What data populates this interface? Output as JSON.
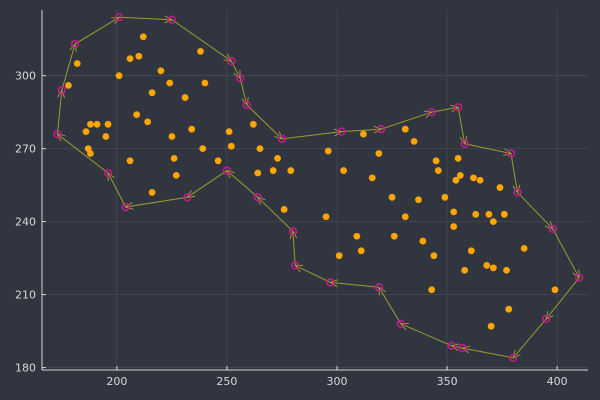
{
  "chart_data": {
    "type": "scatter",
    "title": "",
    "xlabel": "",
    "ylabel": "",
    "xlim": [
      166,
      414
    ],
    "ylim": [
      179,
      327
    ],
    "grid": true,
    "legend": "none",
    "x_ticks": [
      200,
      250,
      300,
      350,
      400
    ],
    "y_ticks": [
      180,
      210,
      240,
      270,
      300
    ],
    "colors": {
      "background": "#31353f",
      "points": "#ffa500",
      "hull": "#9d9d2c",
      "vertex": "#c41a8e"
    },
    "series": [
      {
        "marker": "filled-circle",
        "x": [
          178,
          182,
          186,
          187,
          188,
          188,
          191,
          195,
          196,
          201,
          206,
          206,
          209,
          210,
          212,
          214,
          216,
          216,
          220,
          224,
          225,
          226,
          227,
          231,
          234,
          238,
          239,
          240,
          246,
          251,
          252,
          262,
          264,
          265,
          271,
          273,
          276,
          279,
          295,
          296,
          301,
          303,
          309,
          311,
          312,
          316,
          319,
          325,
          326,
          331,
          331,
          335,
          337,
          339,
          343,
          344,
          345,
          346,
          349,
          353,
          353,
          354,
          355,
          356,
          358,
          361,
          362,
          363,
          365,
          368,
          369,
          370,
          371,
          371,
          374,
          376,
          377,
          378,
          385,
          399
        ],
        "y": [
          296,
          305,
          277,
          270,
          268,
          280,
          280,
          275,
          280,
          300,
          307,
          265,
          284,
          308,
          316,
          281,
          252,
          293,
          302,
          297,
          275,
          266,
          259,
          291,
          278,
          310,
          270,
          297,
          265,
          277,
          271,
          280,
          260,
          270,
          261,
          266,
          245,
          261,
          242,
          269,
          226,
          261,
          234,
          228,
          276,
          258,
          268,
          250,
          234,
          242,
          278,
          273,
          249,
          232,
          212,
          226,
          265,
          261,
          250,
          238,
          244,
          257,
          266,
          259,
          220,
          228,
          258,
          243,
          257,
          222,
          243,
          197,
          240,
          221,
          254,
          243,
          220,
          204,
          229,
          212
        ]
      },
      {
        "marker": "hollow-circle",
        "closed": true,
        "x": [
          173,
          175,
          181,
          201,
          225,
          252,
          256,
          259,
          275,
          302,
          320,
          343,
          355,
          358,
          379,
          382,
          398,
          410,
          395,
          380,
          357,
          352,
          329,
          319,
          297,
          281,
          280,
          264,
          250,
          232,
          204,
          196
        ],
        "y": [
          276,
          294,
          313,
          324,
          323,
          306,
          299,
          288,
          274,
          277,
          278,
          285,
          287,
          272,
          268,
          252,
          237,
          217,
          200,
          184,
          188,
          189,
          198,
          213,
          215,
          222,
          236,
          250,
          261,
          250,
          246,
          260
        ]
      }
    ]
  }
}
